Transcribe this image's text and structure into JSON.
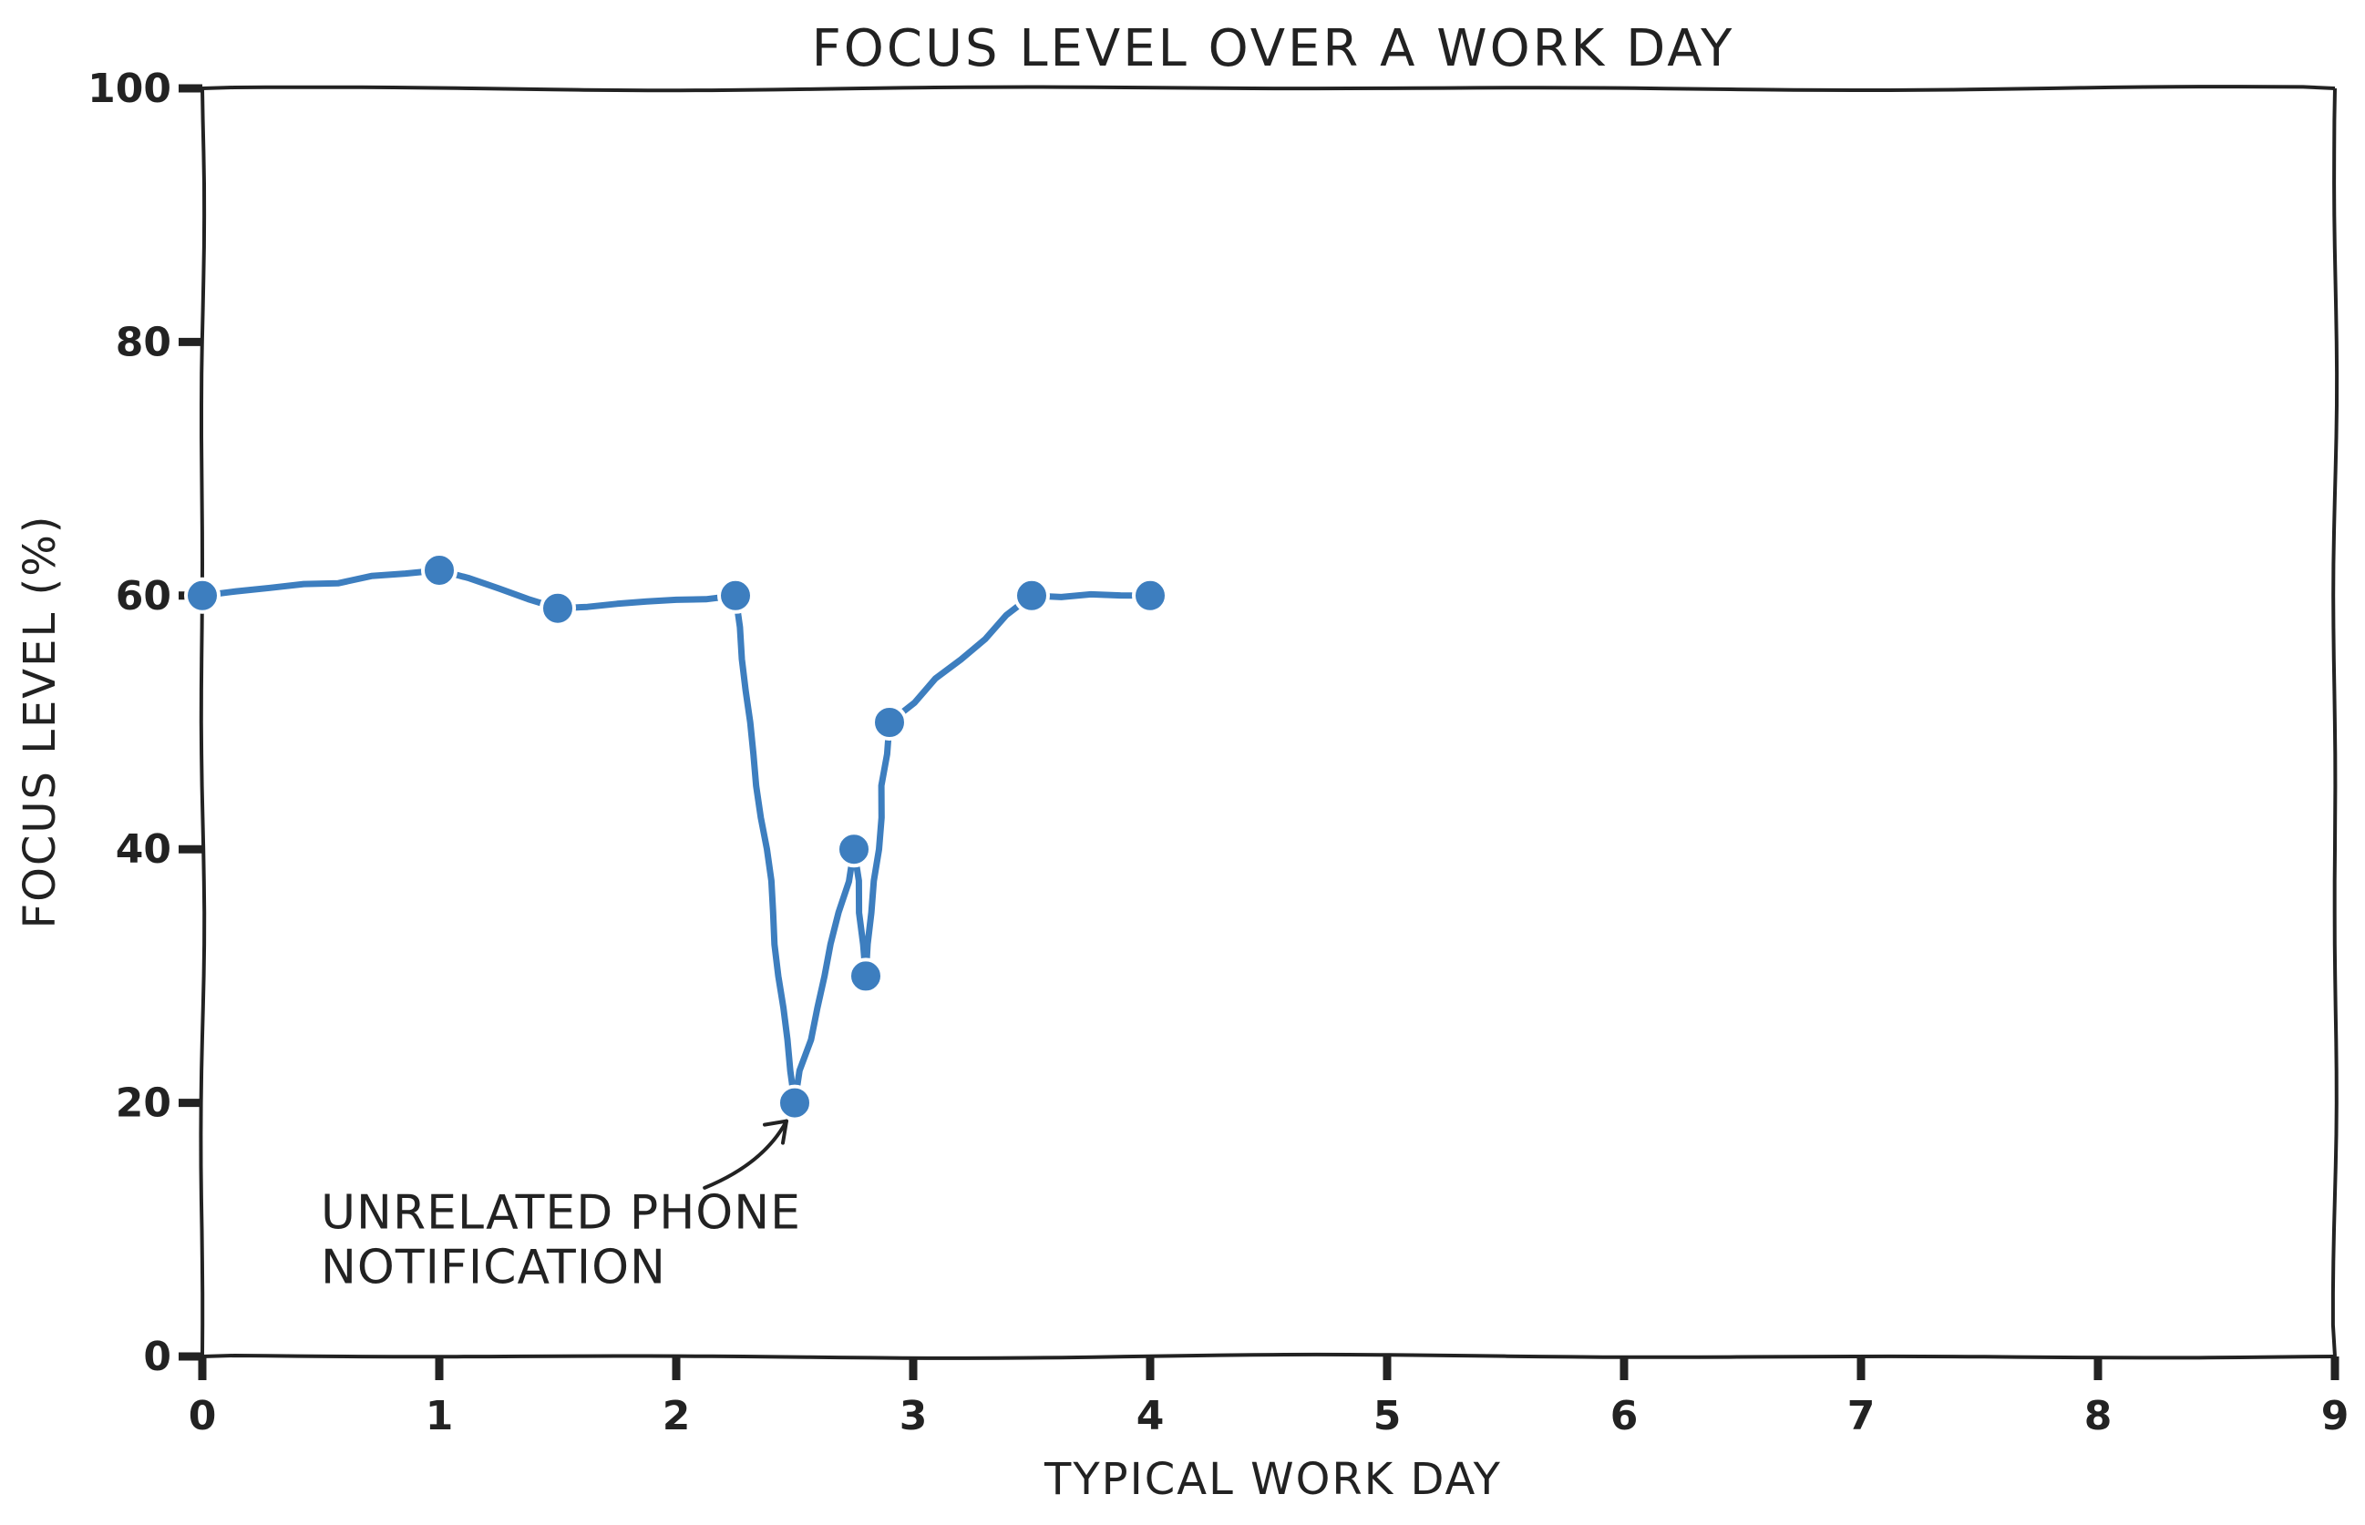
{
  "chart_data": {
    "type": "line",
    "title": "FOCUS LEVEL OVER A WORK DAY",
    "xlabel": "TYPICAL WORK DAY",
    "ylabel": "FOCUS LEVEL (%)",
    "xlim": [
      0,
      9
    ],
    "ylim": [
      0,
      100
    ],
    "xticks": [
      0,
      1,
      2,
      3,
      4,
      5,
      6,
      7,
      8,
      9
    ],
    "yticks": [
      0,
      20,
      40,
      60,
      80,
      100
    ],
    "grid": false,
    "series": [
      {
        "x": [
          0,
          1,
          1.5,
          2.25,
          2.5,
          2.75,
          2.8,
          2.9,
          3.5,
          4
        ],
        "y": [
          60,
          62,
          59,
          60,
          20,
          40,
          30,
          50,
          60,
          60
        ]
      }
    ],
    "annotations": [
      {
        "lines": [
          "UNRELATED PHONE",
          "NOTIFICATION"
        ],
        "point": [
          2.5,
          20
        ]
      }
    ],
    "colors": {
      "series": "#3d7ebf",
      "axis": "#222222",
      "marker_edge": "#ffffff"
    }
  }
}
